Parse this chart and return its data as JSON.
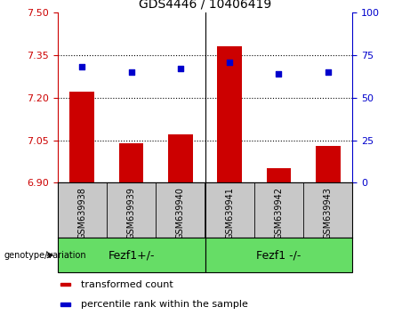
{
  "title": "GDS4446 / 10406419",
  "samples": [
    "GSM639938",
    "GSM639939",
    "GSM639940",
    "GSM639941",
    "GSM639942",
    "GSM639943"
  ],
  "bar_values": [
    7.22,
    7.04,
    7.07,
    7.38,
    6.95,
    7.03
  ],
  "dot_values": [
    68,
    65,
    67,
    71,
    64,
    65
  ],
  "bar_color": "#cc0000",
  "dot_color": "#0000cc",
  "ylim_left": [
    6.9,
    7.5
  ],
  "ylim_right": [
    0,
    100
  ],
  "yticks_left": [
    6.9,
    7.05,
    7.2,
    7.35,
    7.5
  ],
  "yticks_right": [
    0,
    25,
    50,
    75,
    100
  ],
  "hlines": [
    7.05,
    7.2,
    7.35
  ],
  "groups": [
    {
      "label": "Fezf1+/-",
      "start": 0,
      "end": 3
    },
    {
      "label": "Fezf1 -/-",
      "start": 3,
      "end": 6
    }
  ],
  "group_label": "genotype/variation",
  "legend_items": [
    {
      "label": "transformed count",
      "color": "#cc0000"
    },
    {
      "label": "percentile rank within the sample",
      "color": "#0000cc"
    }
  ],
  "bar_width": 0.5,
  "label_bg_color": "#c8c8c8",
  "green_color": "#66dd66",
  "plot_bg_color": "#ffffff",
  "title_fontsize": 10,
  "tick_fontsize": 8,
  "sample_fontsize": 7,
  "group_fontsize": 9,
  "legend_fontsize": 8
}
